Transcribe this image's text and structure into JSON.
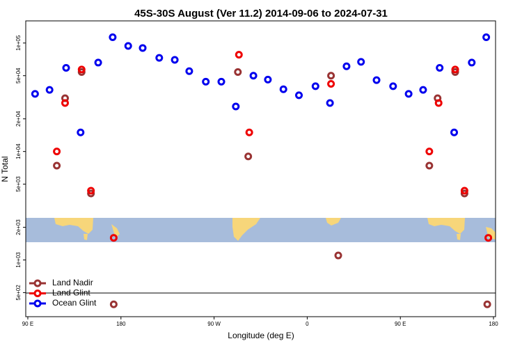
{
  "chart_data": {
    "type": "scatter",
    "title": "45S-30S August (Ver 11.2)   2014-09-06 to 2024-07-31",
    "x_label": "Longitude (deg E)",
    "y_label": "N Total",
    "log_y": true,
    "legend": "lower left",
    "xlim": [
      88,
      542
    ],
    "ylim": [
      300,
      160000
    ],
    "xticks": [
      {
        "value": 90,
        "label": "90 E"
      },
      {
        "value": 180,
        "label": "180"
      },
      {
        "value": 270,
        "label": "90 W"
      },
      {
        "value": 360,
        "label": "0"
      },
      {
        "value": 450,
        "label": "90 E"
      },
      {
        "value": 540,
        "label": "180"
      }
    ],
    "yticks": [
      {
        "value": 500,
        "label": "5e+02"
      },
      {
        "value": 1000,
        "label": "1e+03"
      },
      {
        "value": 2000,
        "label": "2e+03"
      },
      {
        "value": 5000,
        "label": "5e+03"
      },
      {
        "value": 10000,
        "label": "1e+04"
      },
      {
        "value": 20000,
        "label": "2e+04"
      },
      {
        "value": 50000,
        "label": "5e+04"
      },
      {
        "value": 100000,
        "label": "1e+05"
      }
    ],
    "series": [
      {
        "name": "Land Nadir",
        "color": "#993333",
        "x": [
          118,
          126,
          142,
          151,
          173,
          293,
          303,
          383,
          390,
          478,
          486,
          503,
          512,
          534
        ],
        "values": [
          7400,
          31000,
          54000,
          4100,
          390,
          54000,
          9000,
          50000,
          1100,
          7400,
          31000,
          54000,
          4100,
          390
        ]
      },
      {
        "name": "Land Glint",
        "color": "#ee0000",
        "x": [
          118,
          126,
          142,
          151,
          173,
          294,
          304,
          383,
          478,
          487,
          503,
          512,
          535
        ],
        "values": [
          10000,
          28000,
          57000,
          4350,
          1600,
          78000,
          15000,
          42000,
          10000,
          28000,
          57000,
          4350,
          1600
        ]
      },
      {
        "name": "Ocean Glint",
        "color": "#0000ee",
        "x": [
          97,
          111,
          127,
          141,
          158,
          172,
          187,
          201,
          217,
          232,
          246,
          262,
          277,
          291,
          308,
          322,
          337,
          352,
          368,
          382,
          398,
          412,
          427,
          443,
          458,
          472,
          488,
          502,
          519,
          533
        ],
        "values": [
          34000,
          37000,
          59000,
          15000,
          66000,
          113000,
          94000,
          90000,
          73000,
          70000,
          55000,
          44000,
          44000,
          26000,
          50000,
          46000,
          37500,
          33000,
          40000,
          28000,
          61000,
          67000,
          45500,
          40000,
          34000,
          37000,
          59000,
          15000,
          66000,
          113000
        ]
      }
    ]
  }
}
